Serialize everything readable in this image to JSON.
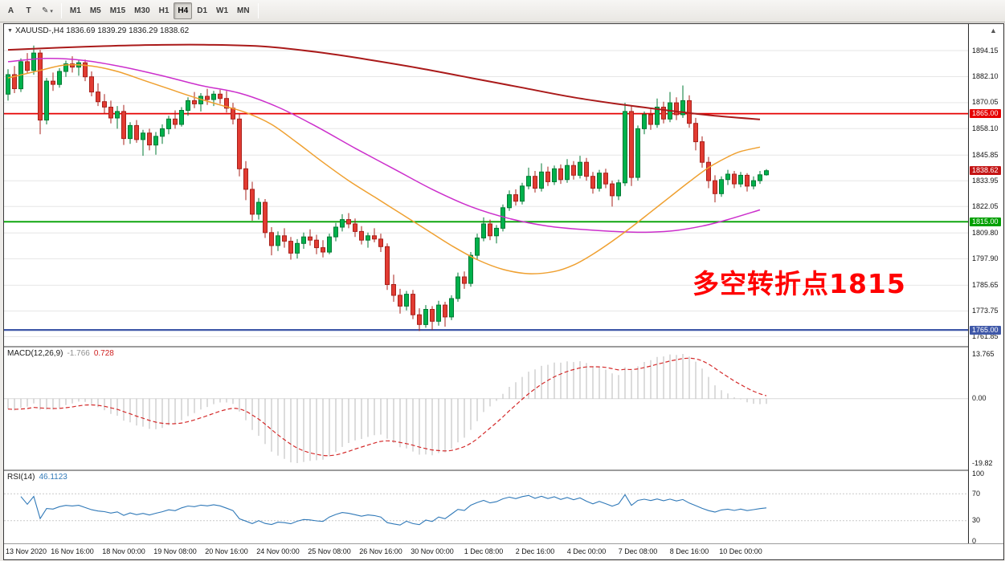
{
  "toolbar": {
    "buttons": [
      {
        "label": "A"
      },
      {
        "label": "T"
      }
    ],
    "timeframes": [
      {
        "label": "M1",
        "active": false
      },
      {
        "label": "M5",
        "active": false
      },
      {
        "label": "M15",
        "active": false
      },
      {
        "label": "M30",
        "active": false
      },
      {
        "label": "H1",
        "active": false
      },
      {
        "label": "H4",
        "active": true
      },
      {
        "label": "D1",
        "active": false
      },
      {
        "label": "W1",
        "active": false
      },
      {
        "label": "MN",
        "active": false
      }
    ]
  },
  "icons": {
    "symbol_caret": "▼",
    "pencil": "✎",
    "dropdown_arrow": "▾",
    "scroll_up": "▲"
  },
  "price_pane": {
    "header_text": "XAUUSD-,H4 1836.69 1839.29 1836.29 1838.62"
  },
  "annotation": {
    "text": "多空转折点1815",
    "color": "#ff0000"
  },
  "macd": {
    "header_label": "MACD(12,26,9)",
    "main_value": "-1.766",
    "signal_value": "0.728",
    "axis_labels": [
      "13.765",
      "0.00",
      "-19.82"
    ],
    "max": 13.765,
    "min": -19.82,
    "fast": 12,
    "slow": 26,
    "smoothing": 9
  },
  "rsi": {
    "header_label": "RSI(14)",
    "value": "46.1123",
    "period": 14,
    "axis_labels": [
      "100",
      "70",
      "30",
      "0"
    ],
    "levels": [
      70,
      30
    ]
  },
  "chart_data": {
    "type": "candlestick",
    "symbol": "XAUUSD-",
    "timeframe": "H4",
    "current_price": {
      "value": 1838.62,
      "label": "1838.62",
      "color": "#c41414"
    },
    "levels": [
      {
        "price": 1865.0,
        "label": "1865.00",
        "color": "#e60000",
        "width": 1.8
      },
      {
        "price": 1815.0,
        "label": "1815.00",
        "color": "#00a000",
        "width": 1.8
      },
      {
        "price": 1765.0,
        "label": "1765.00",
        "color": "#3f58a8",
        "width": 2.2
      }
    ],
    "y_ticks": [
      "1894.15",
      "1882.10",
      "1870.05",
      "1858.10",
      "1845.85",
      "1833.95",
      "1822.05",
      "1809.80",
      "1797.90",
      "1785.65",
      "1773.75",
      "1761.85"
    ],
    "x_ticks": [
      {
        "i": 0,
        "label": "13 Nov 2020"
      },
      {
        "i": 10,
        "label": "16 Nov 16:00"
      },
      {
        "i": 18,
        "label": "18 Nov 00:00"
      },
      {
        "i": 26,
        "label": "19 Nov 08:00"
      },
      {
        "i": 34,
        "label": "20 Nov 16:00"
      },
      {
        "i": 42,
        "label": "24 Nov 00:00"
      },
      {
        "i": 50,
        "label": "25 Nov 08:00"
      },
      {
        "i": 58,
        "label": "26 Nov 16:00"
      },
      {
        "i": 66,
        "label": "30 Nov 00:00"
      },
      {
        "i": 74,
        "label": "1 Dec 08:00"
      },
      {
        "i": 82,
        "label": "2 Dec 16:00"
      },
      {
        "i": 90,
        "label": "4 Dec 00:00"
      },
      {
        "i": 98,
        "label": "7 Dec 08:00"
      },
      {
        "i": 106,
        "label": "8 Dec 16:00"
      },
      {
        "i": 114,
        "label": "10 Dec 00:00"
      }
    ],
    "colors": {
      "up": "#00b14c",
      "up_border": "#007a33",
      "down": "#e23b32",
      "down_border": "#a8211b",
      "grid": "#e6e6e6",
      "macd_hist": "#b9b9b9",
      "macd_signal": "#d42a2a",
      "rsi_line": "#3079b8",
      "ma_slow": "#aa1a1a",
      "ma_mid": "#cc2fcc",
      "ma_fast": "#efa030"
    },
    "ma_lines": [
      {
        "name": "ma-slow",
        "color": "#aa1a1a",
        "width": 2,
        "points": [
          [
            0,
            1894.5
          ],
          [
            8,
            1895.5
          ],
          [
            16,
            1896.3
          ],
          [
            24,
            1896.8
          ],
          [
            32,
            1896.8
          ],
          [
            40,
            1896
          ],
          [
            48,
            1893.5
          ],
          [
            56,
            1890
          ],
          [
            64,
            1886
          ],
          [
            72,
            1881.5
          ],
          [
            80,
            1877
          ],
          [
            88,
            1872.5
          ],
          [
            96,
            1869
          ],
          [
            104,
            1866
          ],
          [
            110,
            1864
          ],
          [
            117,
            1862.3
          ]
        ]
      },
      {
        "name": "ma-mid",
        "color": "#cc2fcc",
        "width": 1.5,
        "points": [
          [
            0,
            1889
          ],
          [
            6,
            1890.5
          ],
          [
            12,
            1889.5
          ],
          [
            18,
            1886.5
          ],
          [
            24,
            1882.5
          ],
          [
            30,
            1878
          ],
          [
            36,
            1874.5
          ],
          [
            42,
            1868
          ],
          [
            48,
            1859
          ],
          [
            54,
            1849
          ],
          [
            60,
            1839.5
          ],
          [
            66,
            1830
          ],
          [
            72,
            1822
          ],
          [
            78,
            1816.5
          ],
          [
            84,
            1813
          ],
          [
            90,
            1811.3
          ],
          [
            96,
            1810.3
          ],
          [
            100,
            1810.2
          ],
          [
            104,
            1811
          ],
          [
            108,
            1813
          ],
          [
            112,
            1816
          ],
          [
            117,
            1820.5
          ]
        ]
      },
      {
        "name": "ma-fast",
        "color": "#efa030",
        "width": 1.5,
        "points": [
          [
            0,
            1881.5
          ],
          [
            5,
            1885
          ],
          [
            9,
            1887.5
          ],
          [
            13,
            1887
          ],
          [
            17,
            1884.5
          ],
          [
            21,
            1880.5
          ],
          [
            25,
            1876.5
          ],
          [
            29,
            1872.5
          ],
          [
            33,
            1869
          ],
          [
            37,
            1865.5
          ],
          [
            41,
            1860
          ],
          [
            45,
            1851.5
          ],
          [
            49,
            1842.5
          ],
          [
            53,
            1834
          ],
          [
            57,
            1826.5
          ],
          [
            61,
            1819
          ],
          [
            65,
            1811.5
          ],
          [
            69,
            1804
          ],
          [
            73,
            1797.5
          ],
          [
            77,
            1793
          ],
          [
            81,
            1791
          ],
          [
            85,
            1792
          ],
          [
            88,
            1795
          ],
          [
            91,
            1800
          ],
          [
            94,
            1806
          ],
          [
            97,
            1812.5
          ],
          [
            100,
            1819.5
          ],
          [
            103,
            1826.5
          ],
          [
            106,
            1833.5
          ],
          [
            109,
            1840
          ],
          [
            112,
            1845
          ],
          [
            114,
            1847.5
          ],
          [
            117,
            1849.5
          ]
        ]
      }
    ],
    "ohlc": [
      [
        1874,
        1885.5,
        1871,
        1883
      ],
      [
        1883,
        1887,
        1874.5,
        1876.5
      ],
      [
        1876.5,
        1890.5,
        1875,
        1889
      ],
      [
        1889,
        1893,
        1883.5,
        1885
      ],
      [
        1885,
        1896.5,
        1883,
        1893
      ],
      [
        1893,
        1894.5,
        1855.5,
        1862
      ],
      [
        1862,
        1881.5,
        1860,
        1880
      ],
      [
        1880,
        1884,
        1875.5,
        1878.5
      ],
      [
        1878.5,
        1886,
        1877,
        1884.5
      ],
      [
        1884.5,
        1889.5,
        1882,
        1888
      ],
      [
        1888,
        1891.5,
        1884,
        1886.5
      ],
      [
        1886.5,
        1890,
        1882.5,
        1888.5
      ],
      [
        1888.5,
        1890,
        1880,
        1882
      ],
      [
        1882,
        1884.5,
        1873,
        1875
      ],
      [
        1875,
        1879,
        1868.5,
        1870.5
      ],
      [
        1870.5,
        1874,
        1865,
        1868
      ],
      [
        1868,
        1871,
        1860.5,
        1863
      ],
      [
        1863,
        1868.5,
        1858,
        1866
      ],
      [
        1866,
        1869,
        1850.5,
        1853.5
      ],
      [
        1853.5,
        1861,
        1851,
        1859.5
      ],
      [
        1859.5,
        1862,
        1851.5,
        1853
      ],
      [
        1853,
        1857.5,
        1845.5,
        1856
      ],
      [
        1856,
        1858,
        1848,
        1850.5
      ],
      [
        1850.5,
        1856.5,
        1846,
        1854.5
      ],
      [
        1854.5,
        1860,
        1851,
        1858
      ],
      [
        1858,
        1864,
        1855.5,
        1862.5
      ],
      [
        1862.5,
        1866.5,
        1858,
        1860
      ],
      [
        1860,
        1868,
        1859,
        1866.5
      ],
      [
        1866.5,
        1872.5,
        1864,
        1871
      ],
      [
        1871,
        1875,
        1867.5,
        1869.5
      ],
      [
        1869.5,
        1874.5,
        1866,
        1873
      ],
      [
        1873,
        1876.5,
        1869,
        1871.5
      ],
      [
        1871.5,
        1875.5,
        1868.5,
        1874
      ],
      [
        1874,
        1876,
        1869.5,
        1872
      ],
      [
        1872,
        1875.5,
        1865.5,
        1867.5
      ],
      [
        1867.5,
        1870,
        1860,
        1862.5
      ],
      [
        1862.5,
        1865,
        1836,
        1839.5
      ],
      [
        1839.5,
        1843,
        1825,
        1830
      ],
      [
        1830,
        1833.5,
        1815.5,
        1818.5
      ],
      [
        1818.5,
        1826,
        1816,
        1824
      ],
      [
        1824,
        1825.5,
        1807.5,
        1810
      ],
      [
        1810,
        1812.5,
        1799.5,
        1804
      ],
      [
        1804,
        1810.5,
        1801.5,
        1808.5
      ],
      [
        1808.5,
        1812,
        1803,
        1806
      ],
      [
        1806,
        1808,
        1797.5,
        1800.5
      ],
      [
        1800.5,
        1807,
        1798,
        1805
      ],
      [
        1805,
        1810,
        1802.5,
        1808
      ],
      [
        1808,
        1811.5,
        1804,
        1806.5
      ],
      [
        1806.5,
        1809,
        1800,
        1803
      ],
      [
        1803,
        1806.5,
        1798.5,
        1801
      ],
      [
        1801,
        1809.5,
        1800,
        1808
      ],
      [
        1808,
        1814.5,
        1806,
        1812.5
      ],
      [
        1812.5,
        1818.5,
        1810.5,
        1816
      ],
      [
        1816,
        1819,
        1812,
        1814
      ],
      [
        1814,
        1816.5,
        1808,
        1810.5
      ],
      [
        1810.5,
        1813,
        1804.5,
        1806.5
      ],
      [
        1806.5,
        1810,
        1803,
        1808.5
      ],
      [
        1808.5,
        1812,
        1805.5,
        1807
      ],
      [
        1807,
        1809.5,
        1801,
        1803.5
      ],
      [
        1803.5,
        1805,
        1783.5,
        1786
      ],
      [
        1786,
        1790.5,
        1778,
        1781
      ],
      [
        1781,
        1784,
        1772.5,
        1776
      ],
      [
        1776,
        1783,
        1774,
        1781.5
      ],
      [
        1781.5,
        1783.5,
        1770,
        1772
      ],
      [
        1772,
        1775,
        1764.5,
        1767.5
      ],
      [
        1767.5,
        1776.5,
        1766,
        1774.5
      ],
      [
        1774.5,
        1776,
        1765,
        1769
      ],
      [
        1769,
        1778.5,
        1767,
        1776.5
      ],
      [
        1776.5,
        1778,
        1766.5,
        1771
      ],
      [
        1771,
        1781,
        1769.5,
        1779.5
      ],
      [
        1779.5,
        1791.5,
        1778,
        1789.5
      ],
      [
        1789.5,
        1792,
        1784,
        1786.5
      ],
      [
        1786.5,
        1801,
        1785,
        1799.5
      ],
      [
        1799.5,
        1809.5,
        1797.5,
        1807.5
      ],
      [
        1807.5,
        1817,
        1806,
        1814
      ],
      [
        1814,
        1816,
        1806.5,
        1808.5
      ],
      [
        1808.5,
        1813.5,
        1805,
        1812
      ],
      [
        1812,
        1823,
        1810.5,
        1821.5
      ],
      [
        1821.5,
        1829.5,
        1820,
        1827.5
      ],
      [
        1827.5,
        1830,
        1822.5,
        1824.5
      ],
      [
        1824.5,
        1833,
        1823,
        1831.5
      ],
      [
        1831.5,
        1840,
        1830,
        1836
      ],
      [
        1836,
        1838.5,
        1828.5,
        1830.5
      ],
      [
        1830.5,
        1842,
        1829,
        1838
      ],
      [
        1838,
        1840.5,
        1831.5,
        1833.5
      ],
      [
        1833.5,
        1841,
        1832,
        1839.5
      ],
      [
        1839.5,
        1841.5,
        1832.5,
        1834.5
      ],
      [
        1834.5,
        1844,
        1833,
        1841
      ],
      [
        1841,
        1843,
        1834.5,
        1836.5
      ],
      [
        1836.5,
        1845.5,
        1835,
        1842.5
      ],
      [
        1842.5,
        1844.5,
        1834,
        1836
      ],
      [
        1836,
        1838,
        1828,
        1830.5
      ],
      [
        1830.5,
        1839,
        1829,
        1837.5
      ],
      [
        1837.5,
        1839.5,
        1830.5,
        1832.5
      ],
      [
        1832.5,
        1834,
        1822,
        1827
      ],
      [
        1827,
        1834.5,
        1825,
        1833
      ],
      [
        1833,
        1870,
        1831.5,
        1866
      ],
      [
        1866,
        1868.5,
        1831.5,
        1835.5
      ],
      [
        1835.5,
        1859.5,
        1834,
        1858
      ],
      [
        1858,
        1866,
        1855.5,
        1864.5
      ],
      [
        1864.5,
        1867,
        1857.5,
        1860
      ],
      [
        1860,
        1872,
        1858.5,
        1868
      ],
      [
        1868,
        1870.5,
        1860.5,
        1862.5
      ],
      [
        1862.5,
        1875,
        1861,
        1870
      ],
      [
        1870,
        1872.5,
        1862,
        1864.5
      ],
      [
        1864.5,
        1878,
        1863,
        1871
      ],
      [
        1871,
        1873.5,
        1858.5,
        1860.5
      ],
      [
        1860.5,
        1863,
        1848,
        1852
      ],
      [
        1852,
        1854.5,
        1840,
        1842.5
      ],
      [
        1842.5,
        1845,
        1830.5,
        1834
      ],
      [
        1834,
        1836.5,
        1824,
        1828
      ],
      [
        1828,
        1836,
        1826.5,
        1834.5
      ],
      [
        1834.5,
        1839,
        1832,
        1837
      ],
      [
        1837,
        1838.5,
        1830.5,
        1832.5
      ],
      [
        1832.5,
        1838,
        1831,
        1836.5
      ],
      [
        1836.5,
        1837.5,
        1829,
        1831.5
      ],
      [
        1831.5,
        1836,
        1830,
        1834
      ],
      [
        1834,
        1838.5,
        1832.5,
        1836.7
      ],
      [
        1836.7,
        1839.3,
        1836.3,
        1838.6
      ]
    ]
  }
}
